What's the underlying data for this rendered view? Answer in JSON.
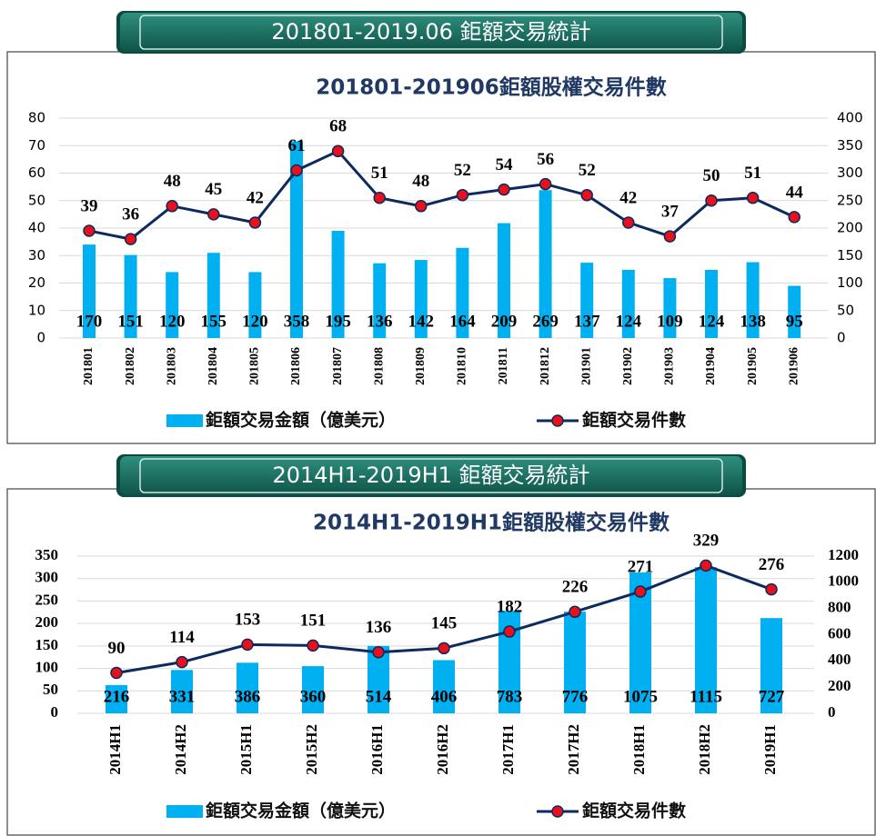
{
  "chart_data": [
    {
      "type": "combo",
      "header": "201801-2019.06 鉅額交易統計",
      "title": "201801-201906鉅額股權交易件數",
      "categories": [
        "201801",
        "201802",
        "201803",
        "201804",
        "201805",
        "201806",
        "201807",
        "201808",
        "201809",
        "201810",
        "201811",
        "201812",
        "201901",
        "201902",
        "201903",
        "201904",
        "201905",
        "201906"
      ],
      "series": [
        {
          "name": "鉅額交易金額（億美元）",
          "type": "bar",
          "axis": "y2",
          "color": "#00b0f0",
          "values": [
            170,
            151,
            120,
            155,
            120,
            358,
            195,
            136,
            142,
            164,
            209,
            269,
            137,
            124,
            109,
            124,
            138,
            95
          ]
        },
        {
          "name": "鉅額交易件數",
          "type": "line",
          "color": "#0d2a5e",
          "marker_color": "#e8101a",
          "values": [
            39,
            36,
            48,
            45,
            42,
            61,
            68,
            51,
            48,
            52,
            54,
            56,
            52,
            42,
            37,
            50,
            51,
            44
          ]
        }
      ],
      "ylim": [
        0,
        80
      ],
      "yticks": [
        0,
        10,
        20,
        30,
        40,
        50,
        60,
        70,
        80
      ],
      "y2lim": [
        0,
        400
      ],
      "y2ticks": [
        0,
        50,
        100,
        150,
        200,
        250,
        300,
        350,
        400
      ],
      "grid": true,
      "legend": "bottom"
    },
    {
      "type": "combo",
      "header": "2014H1-2019H1 鉅額交易統計",
      "title": "2014H1-2019H1鉅額股權交易件數",
      "categories": [
        "2014H1",
        "2014H2",
        "2015H1",
        "2015H2",
        "2016H1",
        "2016H2",
        "2017H1",
        "2017H2",
        "2018H1",
        "2018H2",
        "2019H1"
      ],
      "series": [
        {
          "name": "鉅額交易金額（億美元）",
          "type": "bar",
          "axis": "y2",
          "color": "#00b0f0",
          "values": [
            216,
            331,
            386,
            360,
            514,
            406,
            783,
            776,
            1075,
            1115,
            727
          ]
        },
        {
          "name": "鉅額交易件數",
          "type": "line",
          "color": "#0d2a5e",
          "marker_color": "#e8101a",
          "values": [
            90,
            114,
            153,
            151,
            136,
            145,
            182,
            226,
            271,
            329,
            276
          ]
        }
      ],
      "ylim": [
        0,
        350
      ],
      "yticks": [
        0,
        50,
        100,
        150,
        200,
        250,
        300,
        350
      ],
      "y2lim": [
        0,
        1200
      ],
      "y2ticks": [
        0,
        200,
        400,
        600,
        800,
        1000,
        1200
      ],
      "grid": true,
      "legend": "bottom"
    }
  ]
}
